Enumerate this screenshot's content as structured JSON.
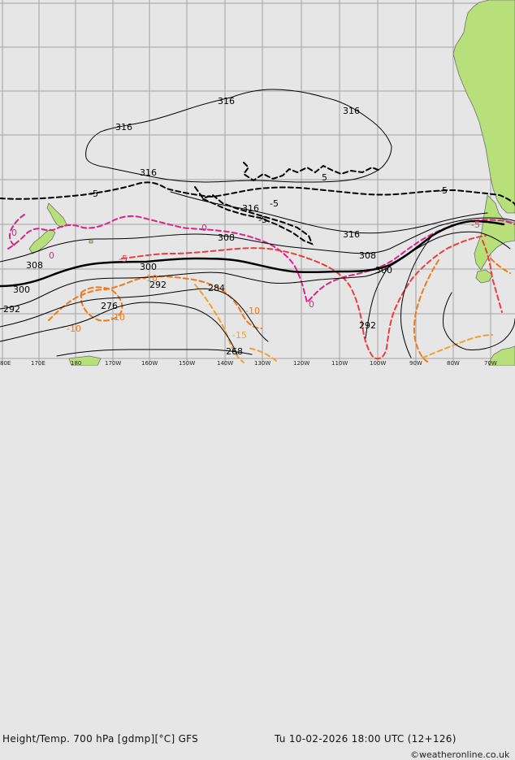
{
  "title": "Height/Temp. 700 hPa [gdmp][°C] GFS",
  "datetime": "Tu 10-02-2026 18:00 UTC (12+126)",
  "credit": "©weatheronline.co.uk",
  "longitude_ticks": [
    "80E",
    "170E",
    "180",
    "170W",
    "160W",
    "150W",
    "140W",
    "130W",
    "120W",
    "110W",
    "100W",
    "90W",
    "80W",
    "70W"
  ],
  "height_labels": [
    "316",
    "316",
    "316",
    "316",
    "316",
    "316",
    "308",
    "308",
    "308",
    "300",
    "300",
    "300",
    "292",
    "292",
    "292",
    "284",
    "276",
    "268"
  ],
  "temp_labels": [
    "-5",
    "-5",
    "-5",
    "-5",
    "5",
    "0",
    "0",
    "0",
    "0",
    "-5",
    "-5",
    "-10",
    "-10",
    "-10",
    "-10",
    "-15"
  ],
  "colors": {
    "background": "#e6e6e6",
    "land": "#b8e07a",
    "land_border": "#7a7a7a",
    "grid": "#a0a0a0",
    "height_contour": "#000000",
    "temp_minus5": "#000000",
    "temp_0": "#e0208a",
    "temp_5_neg": "#ee3b3b",
    "temp_10_neg": "#f07a1a",
    "temp_15_neg": "#f0a030"
  }
}
